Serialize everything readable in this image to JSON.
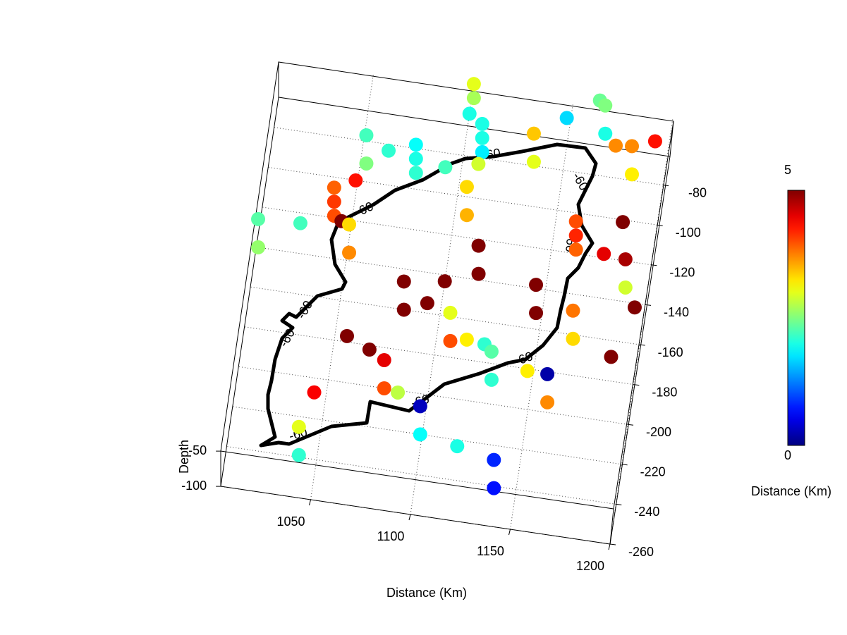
{
  "chart_data": {
    "type": "scatter3d",
    "xlabel": "Distance (Km)",
    "zlabel": "Depth",
    "colorbar_label": "Distance (Km)",
    "colormap": "jet",
    "clim": [
      0,
      5
    ],
    "cticks": [
      0,
      5
    ],
    "contour_level": -60,
    "grid": true,
    "xlim": [
      1005,
      1200
    ],
    "xticks": [
      1050,
      1100,
      1150,
      1200
    ],
    "ylim": [
      -260,
      -47
    ],
    "yticks": [
      -80,
      -100,
      -120,
      -140,
      -160,
      -180,
      -200,
      -220,
      -240,
      -260
    ],
    "zlim": [
      -100,
      -50
    ],
    "zticks": [
      -100,
      -50
    ],
    "x": [
      1102,
      1102,
      1101,
      1164,
      1149,
      1168,
      1168,
      1109,
      1109,
      1109,
      1194,
      1175,
      1135,
      1135,
      1184,
      1184,
      1053,
      1053,
      1064,
      1078,
      1078,
      1078,
      1093,
      1109,
      1050,
      1041,
      1041,
      1041,
      1106,
      1106,
      1046,
      1026,
      1006,
      1006,
      1051,
      1051,
      1184,
      1162,
      1162,
      1162,
      1177,
      1116,
      1116,
      1189,
      1189,
      1101,
      1082,
      1082,
      1094,
      1147,
      1147,
      1196,
      1057,
      1069,
      1107,
      1107,
      1116,
      1125,
      1167,
      1167,
      1188,
      1130,
      1130,
      1148,
      1078,
      1078,
      1086,
      1045,
      1159,
      1159,
      1099,
      1099,
      1119,
      1041,
      1041,
      1139,
      1139
    ],
    "y": [
      -58,
      -58,
      -66,
      -50,
      -61,
      -59,
      -59,
      -77,
      -77,
      -77,
      -66,
      -71,
      -78,
      -78,
      -77,
      -77,
      -91,
      -91,
      -90,
      -92,
      -92,
      -92,
      -94,
      -90,
      -107,
      -119,
      -119,
      -119,
      -109,
      -109,
      -128,
      -132,
      -140,
      -140,
      -136,
      -136,
      -108,
      -118,
      -118,
      -118,
      -125,
      -137,
      -137,
      -133,
      -133,
      -150,
      -160,
      -160,
      -162,
      -152,
      -152,
      -149,
      -184,
      -189,
      -172,
      -172,
      -177,
      -178,
      -162,
      -162,
      -175,
      -188,
      -188,
      -188,
      -200,
      -200,
      -208,
      -214,
      -195,
      -195,
      -220,
      -220,
      -230,
      -239,
      -239,
      -241,
      -241
    ],
    "z": [
      -60,
      -80,
      -80,
      -80,
      -80,
      -60,
      -100,
      -60,
      -80,
      -100,
      -80,
      -80,
      -60,
      -100,
      -60,
      -100,
      -60,
      -100,
      -80,
      -60,
      -80,
      -100,
      -80,
      -80,
      -80,
      -60,
      -80,
      -100,
      -60,
      -100,
      -80,
      -80,
      -60,
      -100,
      -60,
      -100,
      -80,
      -60,
      -80,
      -100,
      -80,
      -60,
      -100,
      -60,
      -100,
      -80,
      -60,
      -100,
      -80,
      -60,
      -100,
      -80,
      -80,
      -80,
      -60,
      -100,
      -80,
      -80,
      -60,
      -100,
      -80,
      -60,
      -100,
      -80,
      -60,
      -100,
      -80,
      -80,
      -60,
      -100,
      -60,
      -100,
      -80,
      -60,
      -100,
      -60,
      -100
    ],
    "values": [
      3.0,
      2.7,
      2.0,
      2.4,
      1.7,
      2.5,
      2.0,
      2.0,
      2.0,
      1.8,
      4.3,
      3.7,
      3.4,
      3.0,
      3.7,
      3.2,
      2.2,
      2.5,
      2.1,
      1.9,
      2.0,
      2.1,
      2.2,
      2.9,
      4.3,
      3.9,
      4.1,
      4.0,
      3.3,
      3.5,
      5,
      2.2,
      2.3,
      2.6,
      3.3,
      3.7,
      5,
      4.0,
      4.2,
      3.9,
      4.5,
      5,
      5,
      4.8,
      2.9,
      5,
      5,
      5,
      5,
      5,
      5,
      5,
      5,
      5,
      3.0,
      4.0,
      3.2,
      2.1,
      3.8,
      3.3,
      5,
      2.3,
      2.1,
      3.2,
      4.5,
      4.0,
      2.8,
      4.4,
      0.2,
      3.7,
      0.3,
      1.9,
      2.0,
      3.0,
      2.1,
      0.8,
      0.7
    ]
  }
}
